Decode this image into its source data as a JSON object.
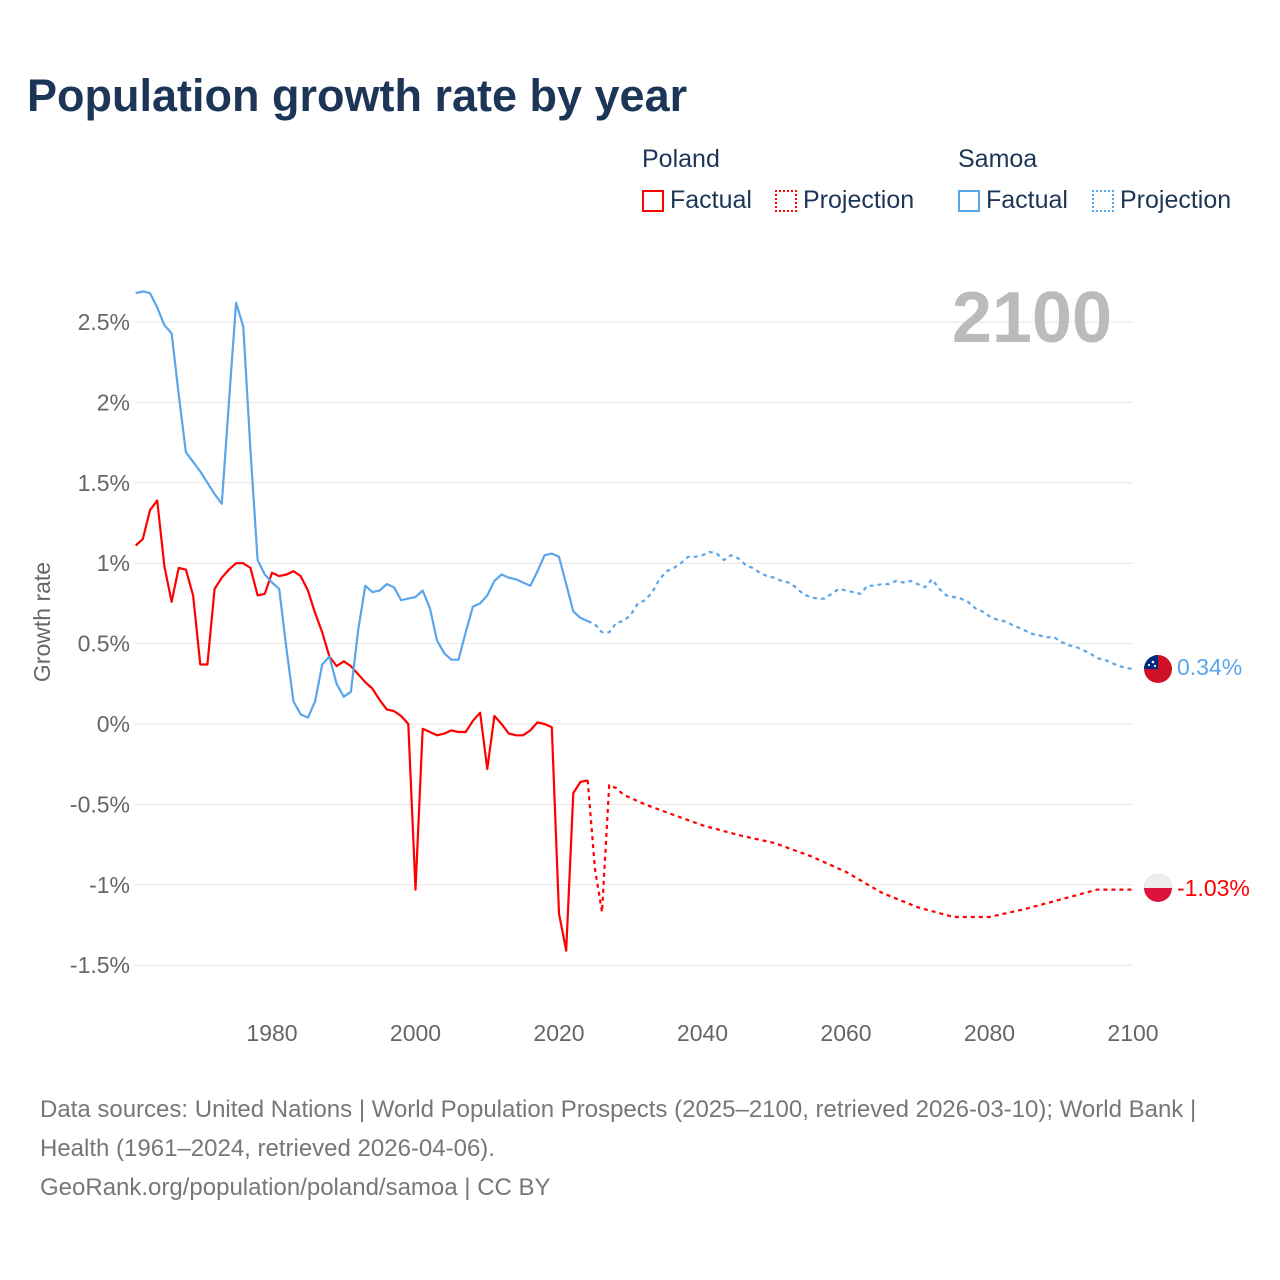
{
  "title": "Population growth rate by year",
  "legend": {
    "groups": [
      {
        "name": "Poland",
        "color": "#ff0000",
        "factual": "Factual",
        "projection": "Projection"
      },
      {
        "name": "Samoa",
        "color": "#5ba5ea",
        "factual": "Factual",
        "projection": "Projection"
      }
    ]
  },
  "year_label": "2100",
  "footer": {
    "sources": "Data sources: United Nations | World Population Prospects (2025–2100, retrieved 2026-03-10); World Bank | Health (1961–2024, retrieved 2026-04-06).",
    "credit": "GeoRank.org/population/poland/samoa | CC BY"
  },
  "chart_data": {
    "type": "line",
    "title": "Population growth rate by year",
    "xlabel": "",
    "ylabel": "Growth rate",
    "xlim": [
      1961,
      2100
    ],
    "ylim": [
      -1.6,
      2.75
    ],
    "x_ticks": [
      1980,
      2000,
      2020,
      2040,
      2060,
      2080,
      2100
    ],
    "x_tick_labels": [
      "1980",
      "2000",
      "2020",
      "2040",
      "2060",
      "2080",
      "2100"
    ],
    "y_ticks": [
      2.5,
      2,
      1.5,
      1,
      0.5,
      0,
      -0.5,
      -1,
      -1.5
    ],
    "y_tick_labels": [
      "2.5%",
      "2%",
      "1.5%",
      "1%",
      "0.5%",
      "0%",
      "-0.5%",
      "-1%",
      "-1.5%"
    ],
    "grid": true,
    "legend_position": "top-right",
    "end_labels": {
      "Samoa": "0.34%",
      "Poland": "-1.03%"
    },
    "series": [
      {
        "name": "Poland",
        "kind": "Factual",
        "color": "#ff0000",
        "x": [
          1961,
          1962,
          1963,
          1964,
          1965,
          1966,
          1967,
          1968,
          1969,
          1970,
          1971,
          1972,
          1973,
          1974,
          1975,
          1976,
          1977,
          1978,
          1979,
          1980,
          1981,
          1982,
          1983,
          1984,
          1985,
          1986,
          1987,
          1988,
          1989,
          1990,
          1991,
          1992,
          1993,
          1994,
          1995,
          1996,
          1997,
          1998,
          1999,
          2000,
          2001,
          2002,
          2003,
          2004,
          2005,
          2006,
          2007,
          2008,
          2009,
          2010,
          2011,
          2012,
          2013,
          2014,
          2015,
          2016,
          2017,
          2018,
          2019,
          2020,
          2021,
          2022,
          2023,
          2024
        ],
        "y": [
          1.11,
          1.15,
          1.33,
          1.39,
          0.98,
          0.76,
          0.97,
          0.96,
          0.8,
          0.37,
          0.37,
          0.84,
          0.91,
          0.96,
          1.0,
          1.0,
          0.97,
          0.8,
          0.81,
          0.94,
          0.92,
          0.93,
          0.95,
          0.92,
          0.83,
          0.69,
          0.57,
          0.42,
          0.36,
          0.39,
          0.36,
          0.31,
          0.26,
          0.22,
          0.15,
          0.09,
          0.08,
          0.05,
          0.0,
          -1.03,
          -0.03,
          -0.05,
          -0.07,
          -0.06,
          -0.04,
          -0.05,
          -0.05,
          0.02,
          0.07,
          -0.28,
          0.05,
          0.0,
          -0.06,
          -0.07,
          -0.07,
          -0.04,
          0.01,
          0.0,
          -0.02,
          -1.18,
          -1.41,
          -0.43,
          -0.36,
          -0.35
        ]
      },
      {
        "name": "Poland",
        "kind": "Projection",
        "color": "#ff0000",
        "x": [
          2024,
          2025,
          2026,
          2027,
          2028,
          2029,
          2030,
          2032,
          2035,
          2040,
          2045,
          2050,
          2055,
          2060,
          2065,
          2070,
          2075,
          2080,
          2085,
          2090,
          2095,
          2100
        ],
        "y": [
          -0.35,
          -0.9,
          -1.17,
          -0.38,
          -0.4,
          -0.44,
          -0.46,
          -0.5,
          -0.55,
          -0.63,
          -0.69,
          -0.74,
          -0.82,
          -0.92,
          -1.05,
          -1.14,
          -1.2,
          -1.2,
          -1.15,
          -1.09,
          -1.03,
          -1.03
        ]
      },
      {
        "name": "Samoa",
        "kind": "Factual",
        "color": "#5ba5ea",
        "x": [
          1961,
          1962,
          1963,
          1964,
          1965,
          1966,
          1967,
          1968,
          1969,
          1970,
          1971,
          1972,
          1973,
          1974,
          1975,
          1976,
          1977,
          1978,
          1979,
          1980,
          1981,
          1982,
          1983,
          1984,
          1985,
          1986,
          1987,
          1988,
          1989,
          1990,
          1991,
          1992,
          1993,
          1994,
          1995,
          1996,
          1997,
          1998,
          1999,
          2000,
          2001,
          2002,
          2003,
          2004,
          2005,
          2006,
          2007,
          2008,
          2009,
          2010,
          2011,
          2012,
          2013,
          2014,
          2015,
          2016,
          2017,
          2018,
          2019,
          2020,
          2021,
          2022,
          2023,
          2024
        ],
        "y": [
          2.68,
          2.69,
          2.68,
          2.59,
          2.48,
          2.43,
          2.05,
          1.69,
          1.63,
          1.57,
          1.5,
          1.43,
          1.37,
          2.0,
          2.62,
          2.47,
          1.7,
          1.02,
          0.93,
          0.88,
          0.84,
          0.47,
          0.14,
          0.06,
          0.04,
          0.14,
          0.37,
          0.42,
          0.25,
          0.17,
          0.2,
          0.58,
          0.86,
          0.82,
          0.83,
          0.87,
          0.85,
          0.77,
          0.78,
          0.79,
          0.83,
          0.72,
          0.52,
          0.44,
          0.4,
          0.4,
          0.57,
          0.73,
          0.75,
          0.8,
          0.89,
          0.93,
          0.91,
          0.9,
          0.88,
          0.86,
          0.95,
          1.05,
          1.06,
          1.04,
          0.87,
          0.7,
          0.66,
          0.64
        ]
      },
      {
        "name": "Samoa",
        "kind": "Projection",
        "color": "#5ba5ea",
        "x": [
          2024,
          2025,
          2026,
          2027,
          2028,
          2029,
          2030,
          2031,
          2032,
          2033,
          2034,
          2035,
          2036,
          2037,
          2038,
          2039,
          2040,
          2041,
          2042,
          2043,
          2044,
          2045,
          2046,
          2047,
          2048,
          2049,
          2050,
          2051,
          2052,
          2053,
          2054,
          2055,
          2056,
          2057,
          2058,
          2059,
          2060,
          2061,
          2062,
          2063,
          2064,
          2065,
          2066,
          2067,
          2068,
          2069,
          2070,
          2071,
          2072,
          2073,
          2074,
          2075,
          2076,
          2077,
          2078,
          2079,
          2080,
          2081,
          2082,
          2083,
          2084,
          2085,
          2086,
          2087,
          2088,
          2089,
          2090,
          2091,
          2092,
          2093,
          2094,
          2095,
          2096,
          2097,
          2098,
          2099,
          2100
        ],
        "y": [
          0.64,
          0.62,
          0.57,
          0.57,
          0.63,
          0.64,
          0.68,
          0.75,
          0.77,
          0.82,
          0.9,
          0.95,
          0.97,
          1.0,
          1.04,
          1.04,
          1.05,
          1.07,
          1.06,
          1.02,
          1.05,
          1.03,
          0.99,
          0.97,
          0.94,
          0.92,
          0.91,
          0.89,
          0.88,
          0.85,
          0.81,
          0.79,
          0.78,
          0.78,
          0.81,
          0.84,
          0.83,
          0.82,
          0.81,
          0.86,
          0.86,
          0.87,
          0.87,
          0.89,
          0.88,
          0.89,
          0.87,
          0.85,
          0.9,
          0.84,
          0.8,
          0.79,
          0.78,
          0.76,
          0.72,
          0.7,
          0.67,
          0.65,
          0.64,
          0.62,
          0.6,
          0.58,
          0.56,
          0.55,
          0.54,
          0.54,
          0.51,
          0.49,
          0.48,
          0.46,
          0.44,
          0.41,
          0.4,
          0.38,
          0.36,
          0.35,
          0.34
        ]
      }
    ]
  }
}
